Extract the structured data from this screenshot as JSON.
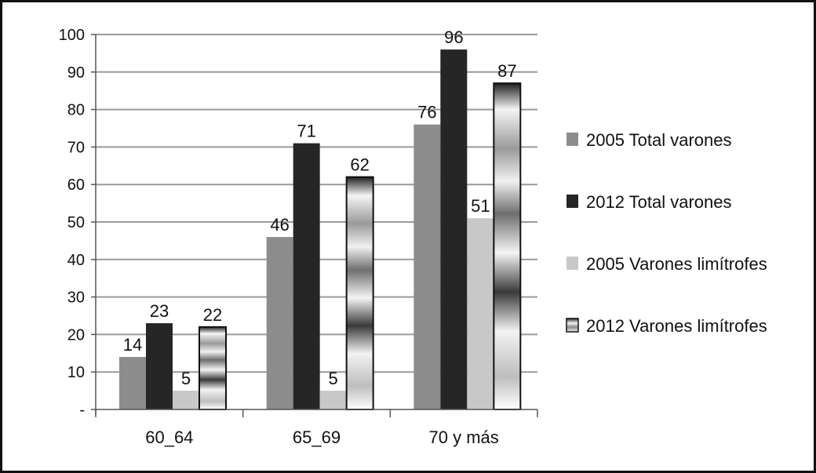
{
  "chart_data": {
    "type": "bar",
    "title": "",
    "xlabel": "",
    "ylabel": "",
    "ylim": [
      0,
      100
    ],
    "yticks": [
      0,
      10,
      20,
      30,
      40,
      50,
      60,
      70,
      80,
      90,
      100
    ],
    "ytick_labels": [
      "-",
      "10",
      "20",
      "30",
      "40",
      "50",
      "60",
      "70",
      "80",
      "90",
      "100"
    ],
    "categories": [
      "60_64",
      "65_69",
      "70 y más"
    ],
    "grid": true,
    "legend_position": "right",
    "series": [
      {
        "name": "2005 Total varones",
        "values": [
          14,
          46,
          76
        ],
        "color": "#8c8c8c",
        "style": "solid"
      },
      {
        "name": "2012 Total varones",
        "values": [
          23,
          71,
          96
        ],
        "color": "#262626",
        "style": "solid"
      },
      {
        "name": "2005 Varones limítrofes",
        "values": [
          5,
          5,
          51
        ],
        "color": "#c8c8c8",
        "style": "solid"
      },
      {
        "name": "2012 Varones limítrofes",
        "values": [
          22,
          62,
          87
        ],
        "color": "#d0d0d0",
        "style": "gradient"
      }
    ]
  }
}
